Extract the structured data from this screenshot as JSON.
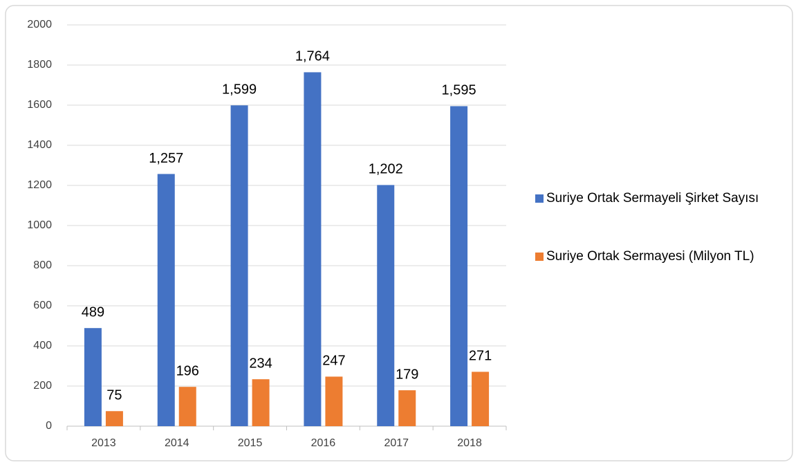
{
  "chart_data": {
    "type": "bar",
    "categories": [
      "2013",
      "2014",
      "2015",
      "2016",
      "2017",
      "2018"
    ],
    "series": [
      {
        "name": "Suriye Ortak Sermayeli Şirket Sayısı",
        "color": "#4472c4",
        "values": [
          489,
          1257,
          1599,
          1764,
          1202,
          1595
        ],
        "value_labels": [
          "489",
          "1,257",
          "1,599",
          "1,764",
          "1,202",
          "1,595"
        ]
      },
      {
        "name": "Suriye Ortak Sermayesi (Milyon TL)",
        "color": "#ed7d31",
        "values": [
          75,
          196,
          234,
          247,
          179,
          271
        ]
      }
    ],
    "ylim": [
      0,
      2000
    ],
    "yticks": [
      0,
      200,
      400,
      600,
      800,
      1000,
      1200,
      1400,
      1600,
      1800,
      2000
    ],
    "grid": true,
    "legend": "right"
  }
}
